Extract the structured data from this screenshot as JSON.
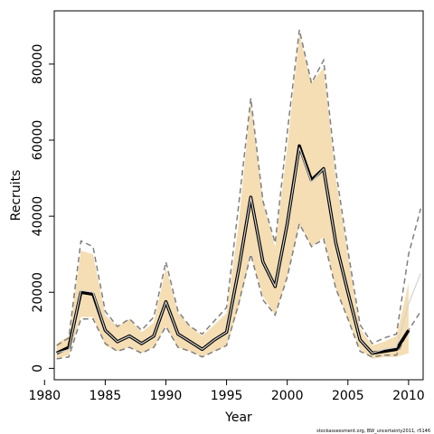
{
  "chart_data": {
    "type": "line",
    "xlabel": "Year",
    "ylabel": "Recruits",
    "xlim": [
      1980.8,
      2011.2
    ],
    "ylim": [
      -3000,
      94000
    ],
    "x_ticks": [
      1980,
      1985,
      1990,
      1995,
      2000,
      2005,
      2010
    ],
    "y_ticks": [
      0,
      20000,
      40000,
      60000,
      80000
    ],
    "footnote": "stockassessment.org, BW_uncertainty2011, r5146",
    "colors": {
      "band": "#f5deb3",
      "median": "#000000",
      "estimate": "#d3d3d3",
      "bounds": "#7f7f7f"
    },
    "x": [
      1981,
      1982,
      1983,
      1984,
      1985,
      1986,
      1987,
      1988,
      1989,
      1990,
      1991,
      1992,
      1993,
      1994,
      1995,
      1996,
      1997,
      1998,
      1999,
      2000,
      2001,
      2002,
      2003,
      2004,
      2005,
      2006,
      2007,
      2008,
      2009,
      2010,
      2011
    ],
    "series": [
      {
        "role": "band",
        "lower": [
          2500,
          3500,
          13500,
          13500,
          6000,
          4500,
          5500,
          4000,
          5500,
          11000,
          5500,
          4500,
          3000,
          4500,
          6000,
          16000,
          30000,
          19000,
          14000,
          24000,
          38000,
          32000,
          34500,
          21000,
          13000,
          5000,
          2500,
          3000,
          3000,
          4000,
          null
        ],
        "upper": [
          6500,
          8500,
          31000,
          30000,
          14000,
          11000,
          13000,
          9500,
          12000,
          26500,
          14500,
          11000,
          8500,
          11500,
          14500,
          38000,
          70000,
          44000,
          32000,
          58000,
          88000,
          75000,
          79000,
          50000,
          30000,
          10500,
          6000,
          7000,
          8500,
          22500,
          null
        ]
      },
      {
        "role": "upper-dashed",
        "values": [
          6000,
          8000,
          33500,
          32000,
          15000,
          11000,
          13000,
          10000,
          13500,
          28000,
          15000,
          11000,
          9000,
          12500,
          16000,
          43000,
          71000,
          44000,
          33000,
          62000,
          89000,
          75000,
          81000,
          52000,
          31000,
          11500,
          6500,
          8000,
          9000,
          30000,
          42000
        ]
      },
      {
        "role": "lower-dashed",
        "values": [
          2500,
          3000,
          13000,
          13000,
          6500,
          4500,
          5500,
          4000,
          5500,
          11000,
          5500,
          4500,
          3000,
          4500,
          6000,
          17000,
          30000,
          18000,
          14000,
          24000,
          38000,
          32000,
          34000,
          21000,
          13000,
          4500,
          3000,
          3500,
          3500,
          10000,
          15000
        ]
      },
      {
        "role": "median",
        "values": [
          4000,
          5500,
          20000,
          19500,
          10000,
          7000,
          8500,
          6500,
          8500,
          17500,
          9000,
          7000,
          5000,
          7500,
          9500,
          26000,
          45000,
          28000,
          21500,
          38000,
          58500,
          49500,
          52500,
          33000,
          20000,
          7500,
          4000,
          4500,
          5000,
          10000,
          null
        ]
      },
      {
        "role": "estimate",
        "values": [
          4000,
          5000,
          20500,
          20000,
          10000,
          7000,
          8500,
          6500,
          8500,
          17500,
          9000,
          7000,
          5000,
          7500,
          9500,
          26000,
          45000,
          28000,
          21500,
          38000,
          58000,
          49000,
          52500,
          33000,
          20000,
          7500,
          4000,
          5000,
          5500,
          17000,
          25000
        ]
      }
    ]
  }
}
